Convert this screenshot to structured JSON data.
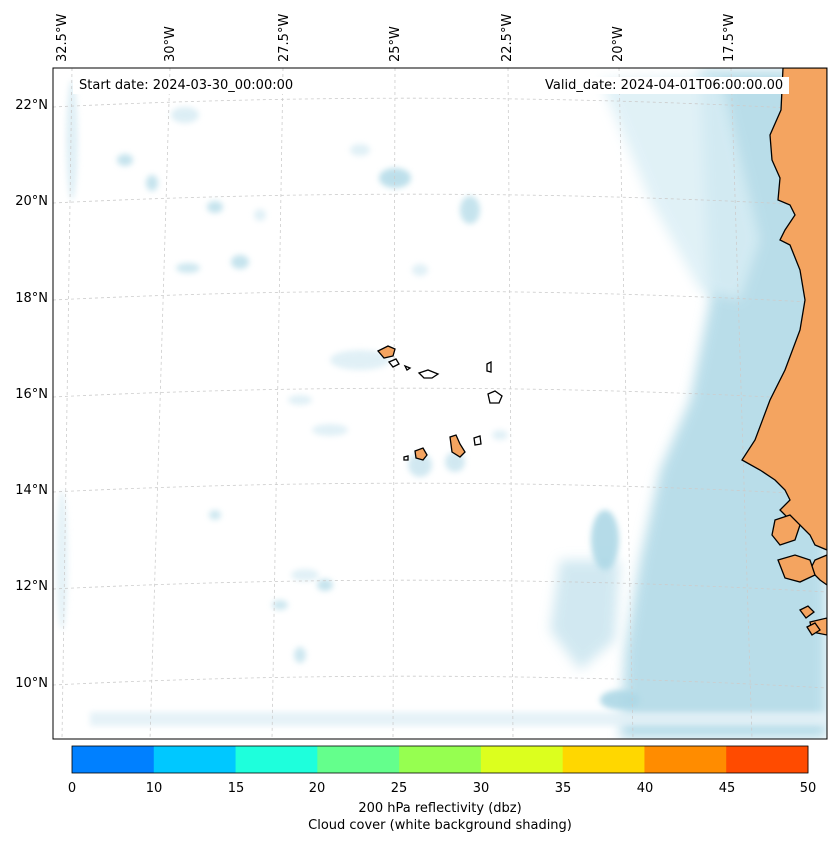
{
  "header": {
    "start_date": "Start date: 2024-03-30_00:00:00",
    "valid_date": "Valid_date: 2024-04-01T06:00:00.00"
  },
  "map": {
    "longitude_labels": [
      "32.5°W",
      "30°W",
      "27.5°W",
      "25°W",
      "22.5°W",
      "20°W",
      "17.5°W"
    ],
    "latitude_labels": [
      "22°N",
      "20°N",
      "18°N",
      "16°N",
      "14°N",
      "12°N",
      "10°N"
    ],
    "colors": {
      "land": "#f4a460",
      "coast": "#000000",
      "cloud": "#add8e6",
      "grid": "#cccccc"
    }
  },
  "colorbar": {
    "ticks": [
      "0",
      "10",
      "15",
      "20",
      "25",
      "30",
      "35",
      "40",
      "45",
      "50"
    ],
    "colors": [
      "#0080ff",
      "#00c8ff",
      "#1effdc",
      "#64ff8c",
      "#96ff50",
      "#dcff1e",
      "#ffd700",
      "#ff8c00",
      "#ff4b00"
    ],
    "label_line1": "200 hPa reflectivity (dbz)",
    "label_line2": "Cloud cover (white background shading)"
  }
}
